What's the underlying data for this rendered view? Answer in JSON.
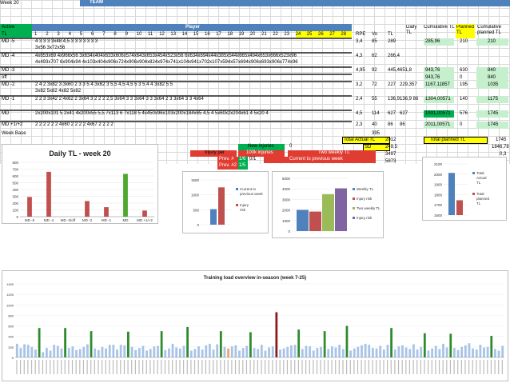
{
  "header": {
    "week_label": "Week 20",
    "team_label": "TEAM",
    "player_label": "Player",
    "col_active": "Active",
    "col_tl": "TL",
    "player_numbers": [
      "1",
      "2",
      "3",
      "4",
      "5",
      "6",
      "7",
      "8",
      "9",
      "10",
      "11",
      "12",
      "13",
      "14",
      "15",
      "16",
      "17",
      "18",
      "19",
      "20",
      "21",
      "22",
      "23",
      "24",
      "25",
      "26",
      "27",
      "28"
    ],
    "col_rpe": "RPE",
    "col_vo": "Vo",
    "col_tl2": "TL",
    "col_daily": "Daily TL",
    "col_cumulative": "Cumulative TL",
    "col_planned": "Planned TL",
    "col_cum_planned": "Cumulative planned TL"
  },
  "rows": [
    {
      "label": "MD -5",
      "data": "4 3 3 3 3x48 4,5 3 3 3 3 3 3 3",
      "sub": "3x56 3x72x56",
      "rpe": "3,4",
      "vo": "85",
      "tl": "289",
      "daily": "",
      "cum": "285,96",
      "planned": "210",
      "cum_planned": "210"
    },
    {
      "label": "MD -4",
      "data": "4x653x69 4x966x56 3x634x404x633x606x574x643x653x454x523x56 6x634x694x44x385x544x665x494x653x666x523x96",
      "sub": "4x493x707 6x904x94 4x103x404x906x724x906x904x824x974x741x104x941x702x107x594x57x694x906x693x906x774x96",
      "rpe": "4,3",
      "vo": "62",
      "tl": "266,4",
      "daily": "",
      "cum": "",
      "planned": "",
      "cum_planned": ""
    },
    {
      "label": "MD -3",
      "data": "",
      "sub": "",
      "rpe": "4,95",
      "vo": "92",
      "tl": "445,4",
      "daily": "651,8",
      "cum": "943,76",
      "planned": "630",
      "cum_planned": "840"
    },
    {
      "label": "off",
      "data": "",
      "sub": "",
      "rpe": "",
      "vo": "",
      "tl": "",
      "daily": "",
      "cum": "943,76",
      "planned": "0",
      "cum_planned": "840"
    },
    {
      "label": "MD -2",
      "data": "2 4 2 3x82 3 3x60 2 3 3 5 4 3x62 3 5,5 4,5 4,5 5 3 5 4 4 3x82 5 5",
      "sub": "3x82 5x82 4x82 5x82",
      "rpe": "3,2",
      "vo": "72",
      "tl": "227",
      "daily": "229,357",
      "cum": "1167,11857",
      "planned": "195",
      "cum_planned": "1035"
    },
    {
      "label": "MD -1",
      "data": "2 2 3 3x42 2 4x62 2 3x64 3 2 2 2 2,5 3x64 3 3 3x64 3 3 3x64 2 3 3x64 3 3 4x64",
      "sub": "",
      "rpe": "2,4",
      "vo": "55",
      "tl": "136,9",
      "daily": "136,9 86",
      "cum": "1304,00571",
      "planned": "140",
      "cum_planned": "1175"
    },
    {
      "label": "MD",
      "data": "2x200x101 5 2x41 4x200x55 5,5 7x113 6 7x118 5 4x450x96x103x200x184x65 4,5 4 5x60x2x204x61 4 5x20 4",
      "sub": "",
      "rpe": "4,5",
      "vo": "114",
      "tl": "627",
      "daily": "627",
      "cum": "1931,00571",
      "planned": "576",
      "cum_planned": "1745"
    },
    {
      "label": "MD +1/+2",
      "data": "2 2 2 2 2 2 4x60 2 2 2 2 4x67 2 2 2 2",
      "sub": "",
      "rpe": "2,3",
      "vo": "40",
      "tl": "86",
      "daily": "86",
      "cum": "2011,00571",
      "planned": "0",
      "cum_planned": "1745"
    }
  ],
  "week_base": {
    "label": "Week Base",
    "value": "395"
  },
  "totals": {
    "actual_label": "Total Actual TL",
    "actual_value": "2012",
    "sd_label": "SD",
    "sd_value": "249,5",
    "row3_value": "3497",
    "row4_value": "5873",
    "planned_label": "Total planned TL",
    "planned_value": "1745",
    "planned_pct": "1846,78",
    "planned_extra": "0,3"
  },
  "status_panel": {
    "new_injuries_label": "New injuries",
    "new_injuries_value": "0",
    "injury_label": "Injury per",
    "injury_value": "100k injuries",
    "two_weekly_label": "Two weekly TL",
    "prev_label": "Prev. #",
    "prev_value": "1/6",
    "prev_value2": "0/1",
    "current_label": "Current to previous week",
    "rest_label": "Prev. #2",
    "rest_value": "1/5"
  },
  "daily_chart": {
    "title": "Daily TL - week 20",
    "yticks": [
      "0",
      "100",
      "200",
      "300",
      "400",
      "500",
      "600",
      "700",
      "800"
    ],
    "categories": [
      "MD -5",
      "MD -4",
      "MD -3/off",
      "MD -2",
      "MD -1",
      "MD",
      "MD +1/+2"
    ]
  },
  "mini_chart1": {
    "yticks": [
      "0",
      "500",
      "1000",
      "1500"
    ],
    "legend": [
      "Current to previous week",
      "Injury risk"
    ]
  },
  "mini_chart2": {
    "yticks": [
      "0",
      "1000",
      "2000",
      "3000",
      "4000",
      "5000"
    ],
    "legend": [
      "Weekly TL",
      "Injury risk",
      "Two weekly TL",
      "Injury risk"
    ]
  },
  "mini_chart3": {
    "yticks": [
      "1600",
      "1700",
      "1800",
      "1900",
      "2000",
      "2100"
    ],
    "legend": [
      "Total Actual TL",
      "Total planned TL"
    ]
  },
  "overview_chart": {
    "title": "Training load overview in-season (week 7-25)",
    "yticks": [
      "0",
      "200",
      "400",
      "600",
      "800",
      "1000",
      "1200",
      "1400"
    ]
  },
  "chart_data": [
    {
      "type": "bar",
      "title": "Daily TL - week 20",
      "categories": [
        "MD -5",
        "MD -4",
        "MD -3/off",
        "MD -2",
        "MD -1",
        "MD",
        "MD +1/+2"
      ],
      "values": [
        290,
        660,
        0,
        230,
        140,
        630,
        90
      ],
      "colors": [
        "#c0504d",
        "#c0504d",
        "#c0504d",
        "#c0504d",
        "#c0504d",
        "#4ea72e",
        "#c0504d"
      ],
      "ylim": [
        0,
        800
      ]
    },
    {
      "type": "bar",
      "categories": [
        "Current to previous week",
        "Injury risk"
      ],
      "values": [
        520,
        1250
      ],
      "ylim": [
        0,
        1500
      ]
    },
    {
      "type": "bar",
      "categories": [
        "Weekly TL",
        "Injury risk",
        "Two weekly TL",
        "Injury risk"
      ],
      "values": [
        2010,
        1850,
        3500,
        4050
      ],
      "ylim": [
        0,
        5000
      ]
    },
    {
      "type": "bar",
      "categories": [
        "Total Actual TL",
        "Total planned TL"
      ],
      "values": [
        2012,
        1745
      ],
      "ylim": [
        1600,
        2100
      ]
    },
    {
      "type": "bar",
      "title": "Training load overview in-season (week 7-25)",
      "values": [
        260,
        180,
        250,
        240,
        200,
        150,
        560,
        100,
        180,
        130,
        240,
        220,
        170,
        560,
        180,
        210,
        140,
        160,
        200,
        250,
        500,
        170,
        140,
        200,
        170,
        240,
        240,
        150,
        240,
        230,
        490,
        200,
        140,
        180,
        220,
        130,
        160,
        210,
        220,
        500,
        140,
        170,
        260,
        190,
        170,
        220,
        580,
        130,
        160,
        210,
        150,
        230,
        260,
        150,
        250,
        500,
        200,
        170,
        210,
        230,
        130,
        180,
        220,
        480,
        180,
        160,
        240,
        130,
        190,
        210,
        860,
        150,
        170,
        200,
        230,
        240,
        530,
        160,
        220,
        210,
        130,
        180,
        200,
        500,
        160,
        210,
        190,
        240,
        160,
        600,
        130,
        170,
        200,
        230,
        260,
        240,
        180,
        170,
        220,
        150,
        240,
        560,
        150,
        210,
        230,
        190,
        160,
        250,
        150,
        200,
        460,
        130,
        170,
        220,
        160,
        260,
        190,
        450,
        180,
        140,
        200,
        230,
        270,
        170,
        150,
        240,
        190,
        200,
        410,
        160,
        130,
        220
      ],
      "colors_key": "mixed light-blue / green / dark-red / orange",
      "ylim": [
        0,
        1400
      ]
    }
  ]
}
